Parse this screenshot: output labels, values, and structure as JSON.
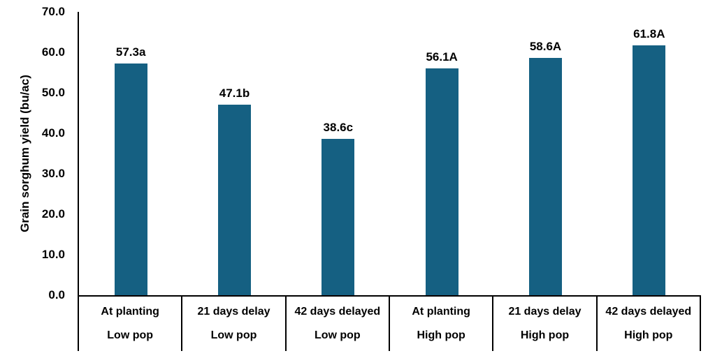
{
  "chart_data": {
    "type": "bar",
    "title": "",
    "xlabel": "",
    "ylabel": "Grain sorghum yield (bu/ac)",
    "ylim": [
      0,
      70
    ],
    "yticks": [
      0,
      10,
      20,
      30,
      40,
      50,
      60,
      70
    ],
    "ytick_labels": [
      "0.0",
      "10.0",
      "20.0",
      "30.0",
      "40.0",
      "50.0",
      "60.0",
      "70.0"
    ],
    "grid": false,
    "legend": false,
    "bar_color": "#156082",
    "categories": [
      {
        "treatment": "At planting",
        "population": "Low pop"
      },
      {
        "treatment": "21 days delay",
        "population": "Low pop"
      },
      {
        "treatment": "42 days delayed",
        "population": "Low pop"
      },
      {
        "treatment": "At planting",
        "population": "High pop"
      },
      {
        "treatment": "21 days delay",
        "population": "High pop"
      },
      {
        "treatment": "42 days delayed",
        "population": "High pop"
      }
    ],
    "values": [
      57.3,
      47.1,
      38.6,
      56.1,
      58.6,
      61.8
    ],
    "data_labels": [
      "57.3a",
      "47.1b",
      "38.6c",
      "56.1A",
      "58.6A",
      "61.8A"
    ]
  }
}
